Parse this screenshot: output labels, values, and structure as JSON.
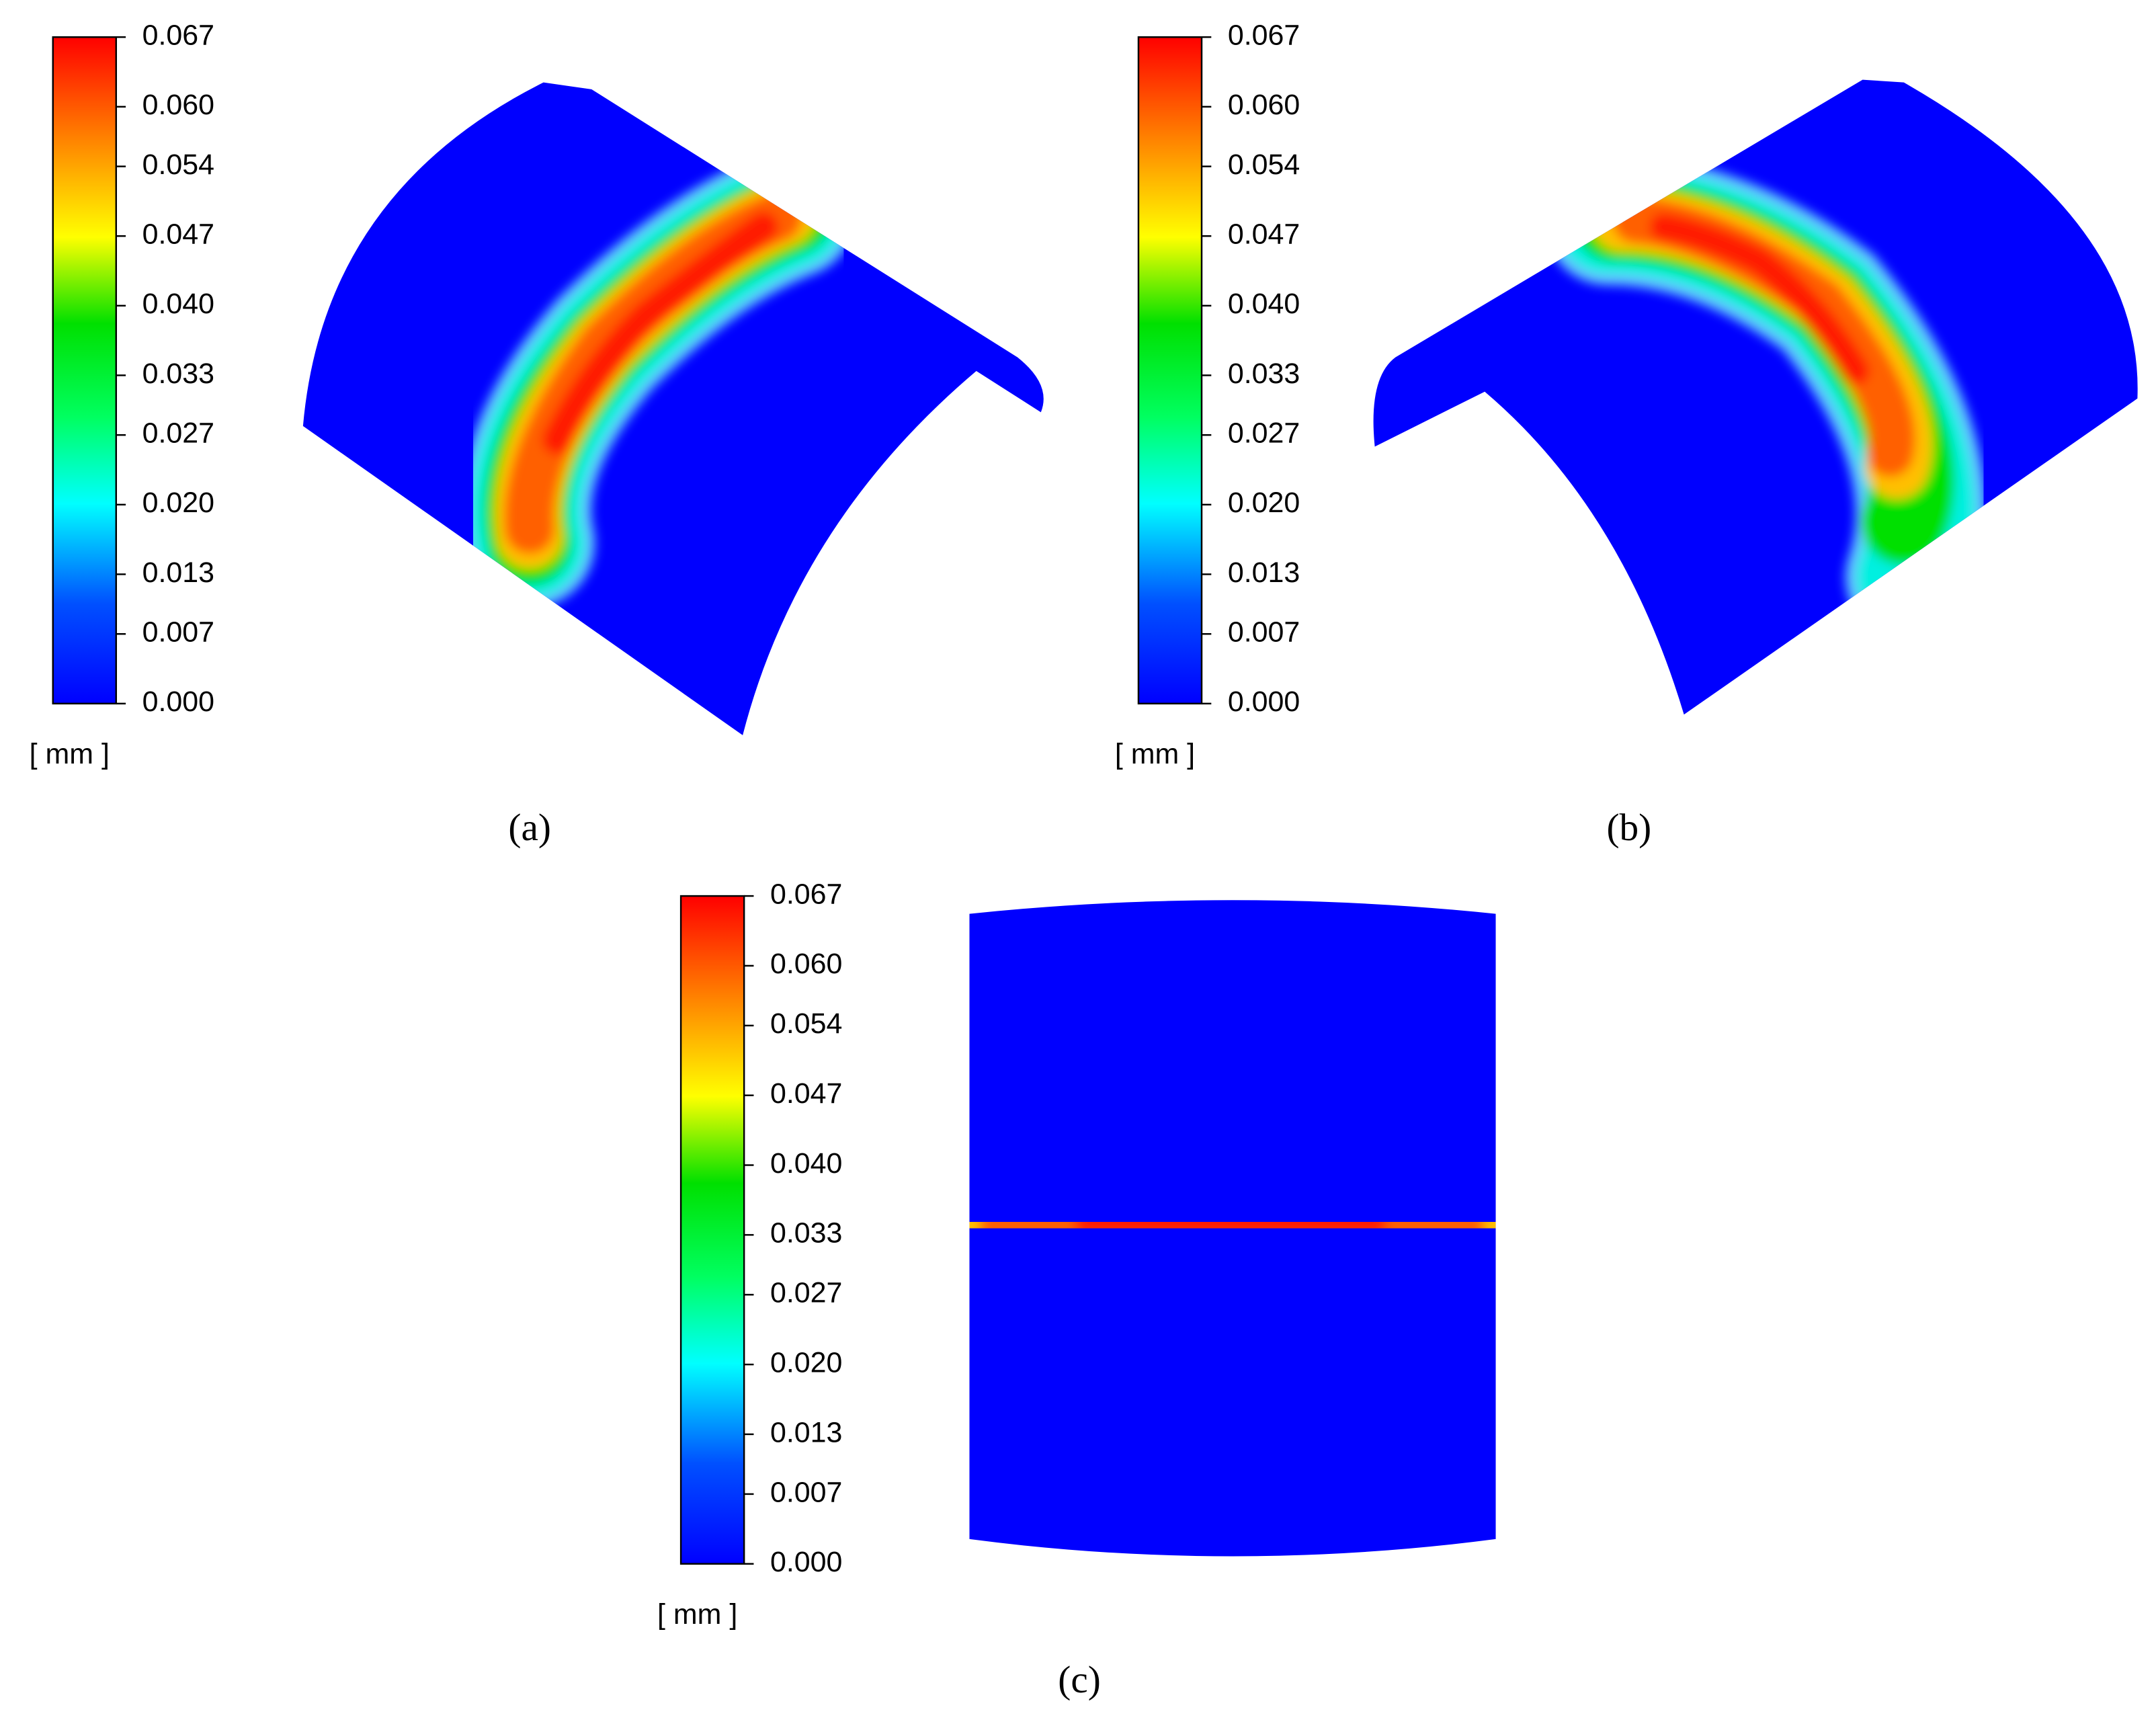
{
  "panels": [
    {
      "label": "(a)",
      "colorbar": {
        "lim": [
          0,
          0.067
        ],
        "ticks": [
          {
            "value": 0,
            "label": "0.000"
          },
          0.007,
          0.013,
          {
            "value": 0.02,
            "label": "0.020"
          },
          0.027,
          0.033,
          {
            "value": 0.04,
            "label": "0.040"
          },
          0.047,
          0.054,
          {
            "value": 0.06,
            "label": "0.060"
          },
          0.067
        ],
        "unit": "[ mm ]"
      }
    },
    {
      "label": "(b)",
      "colorbar": {
        "lim": [
          0,
          0.067
        ],
        "ticks": [
          {
            "value": 0,
            "label": "0.000"
          },
          0.007,
          0.013,
          {
            "value": 0.02,
            "label": "0.020"
          },
          0.027,
          0.033,
          {
            "value": 0.04,
            "label": "0.040"
          },
          0.047,
          0.054,
          {
            "value": 0.06,
            "label": "0.060"
          },
          0.067
        ],
        "unit": "[ mm ]"
      }
    },
    {
      "label": "(c)",
      "colorbar": {
        "lim": [
          0,
          0.067
        ],
        "ticks": [
          {
            "value": 0,
            "label": "0.000"
          },
          0.007,
          0.013,
          {
            "value": 0.02,
            "label": "0.020"
          },
          0.027,
          0.033,
          {
            "value": 0.04,
            "label": "0.040"
          },
          0.047,
          0.054,
          {
            "value": 0.06,
            "label": "0.060"
          },
          0.067
        ],
        "unit": "[ mm ]"
      }
    }
  ]
}
